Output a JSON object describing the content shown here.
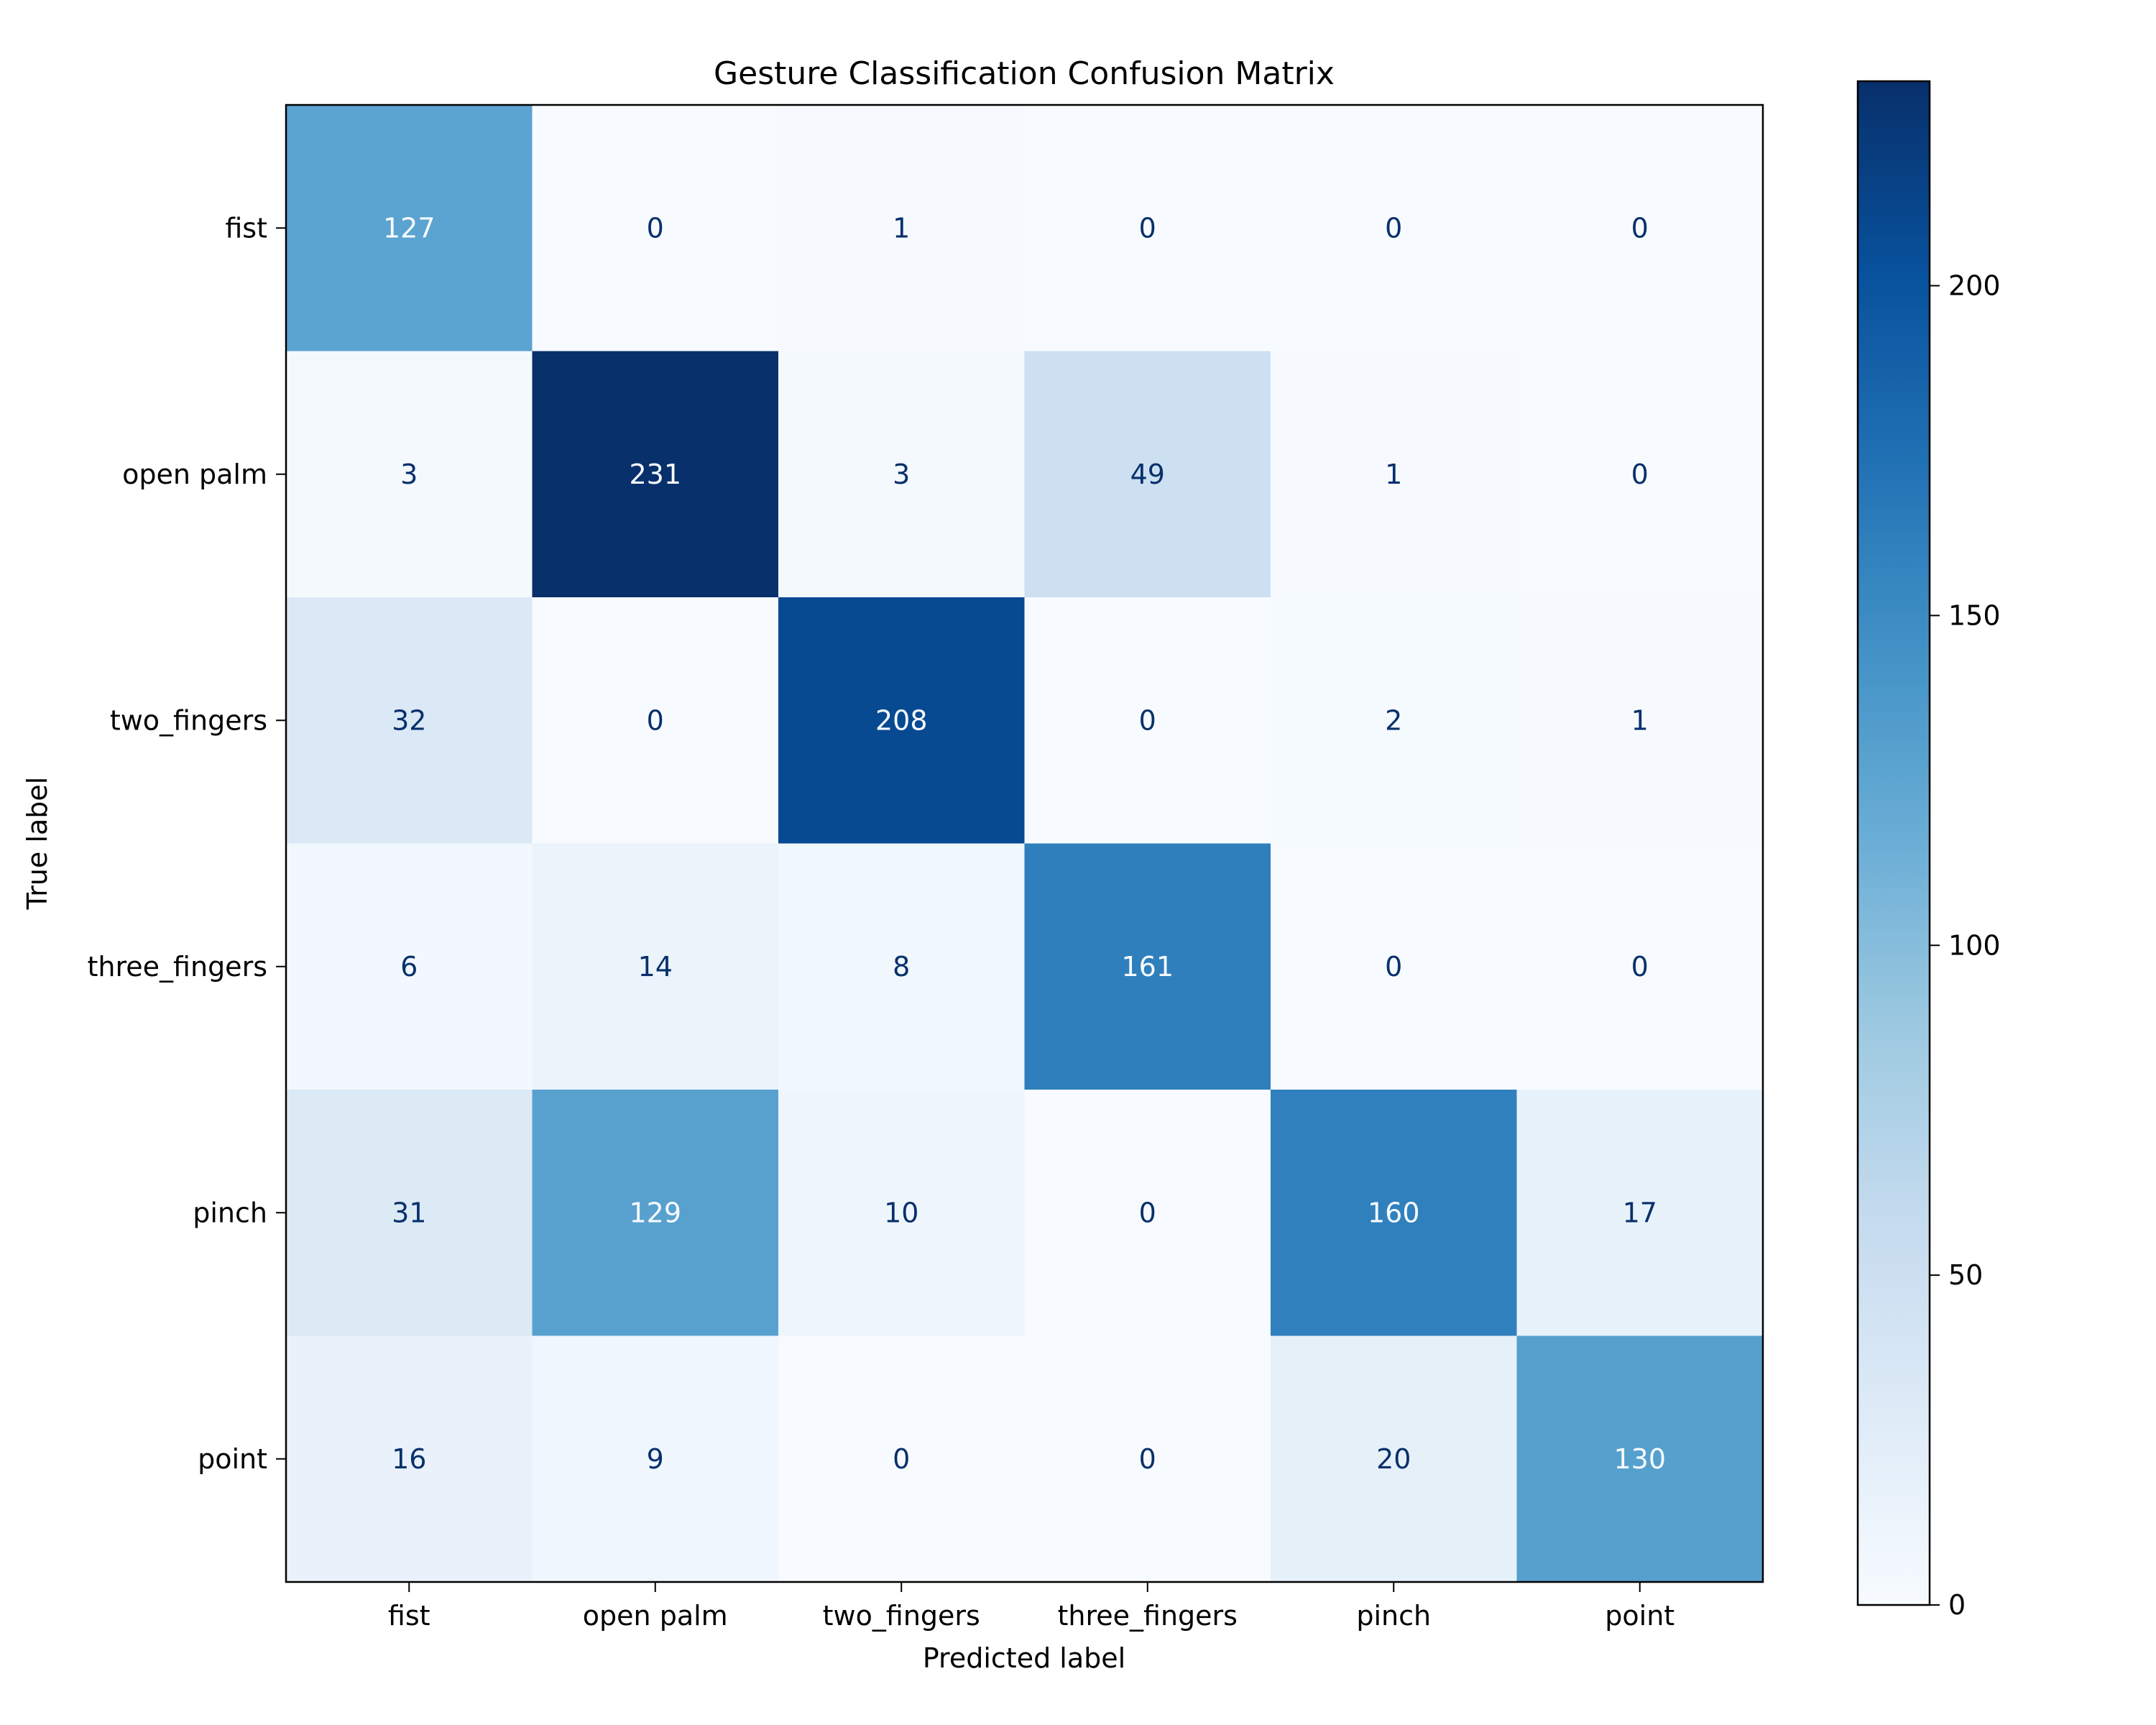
{
  "chart_data": {
    "type": "heatmap",
    "title": "Gesture Classification Confusion Matrix",
    "xlabel": "Predicted label",
    "ylabel": "True label",
    "x_categories": [
      "fist",
      "open palm",
      "two_fingers",
      "three_fingers",
      "pinch",
      "point"
    ],
    "y_categories": [
      "fist",
      "open palm",
      "two_fingers",
      "three_fingers",
      "pinch",
      "point"
    ],
    "values": [
      [
        127,
        0,
        1,
        0,
        0,
        0
      ],
      [
        3,
        231,
        3,
        49,
        1,
        0
      ],
      [
        32,
        0,
        208,
        0,
        2,
        1
      ],
      [
        6,
        14,
        8,
        161,
        0,
        0
      ],
      [
        31,
        129,
        10,
        0,
        160,
        17
      ],
      [
        16,
        9,
        0,
        0,
        20,
        130
      ]
    ],
    "colormap": "Blues",
    "colorbar": {
      "range": [
        0,
        231
      ],
      "ticks": [
        0,
        50,
        100,
        150,
        200
      ]
    }
  }
}
